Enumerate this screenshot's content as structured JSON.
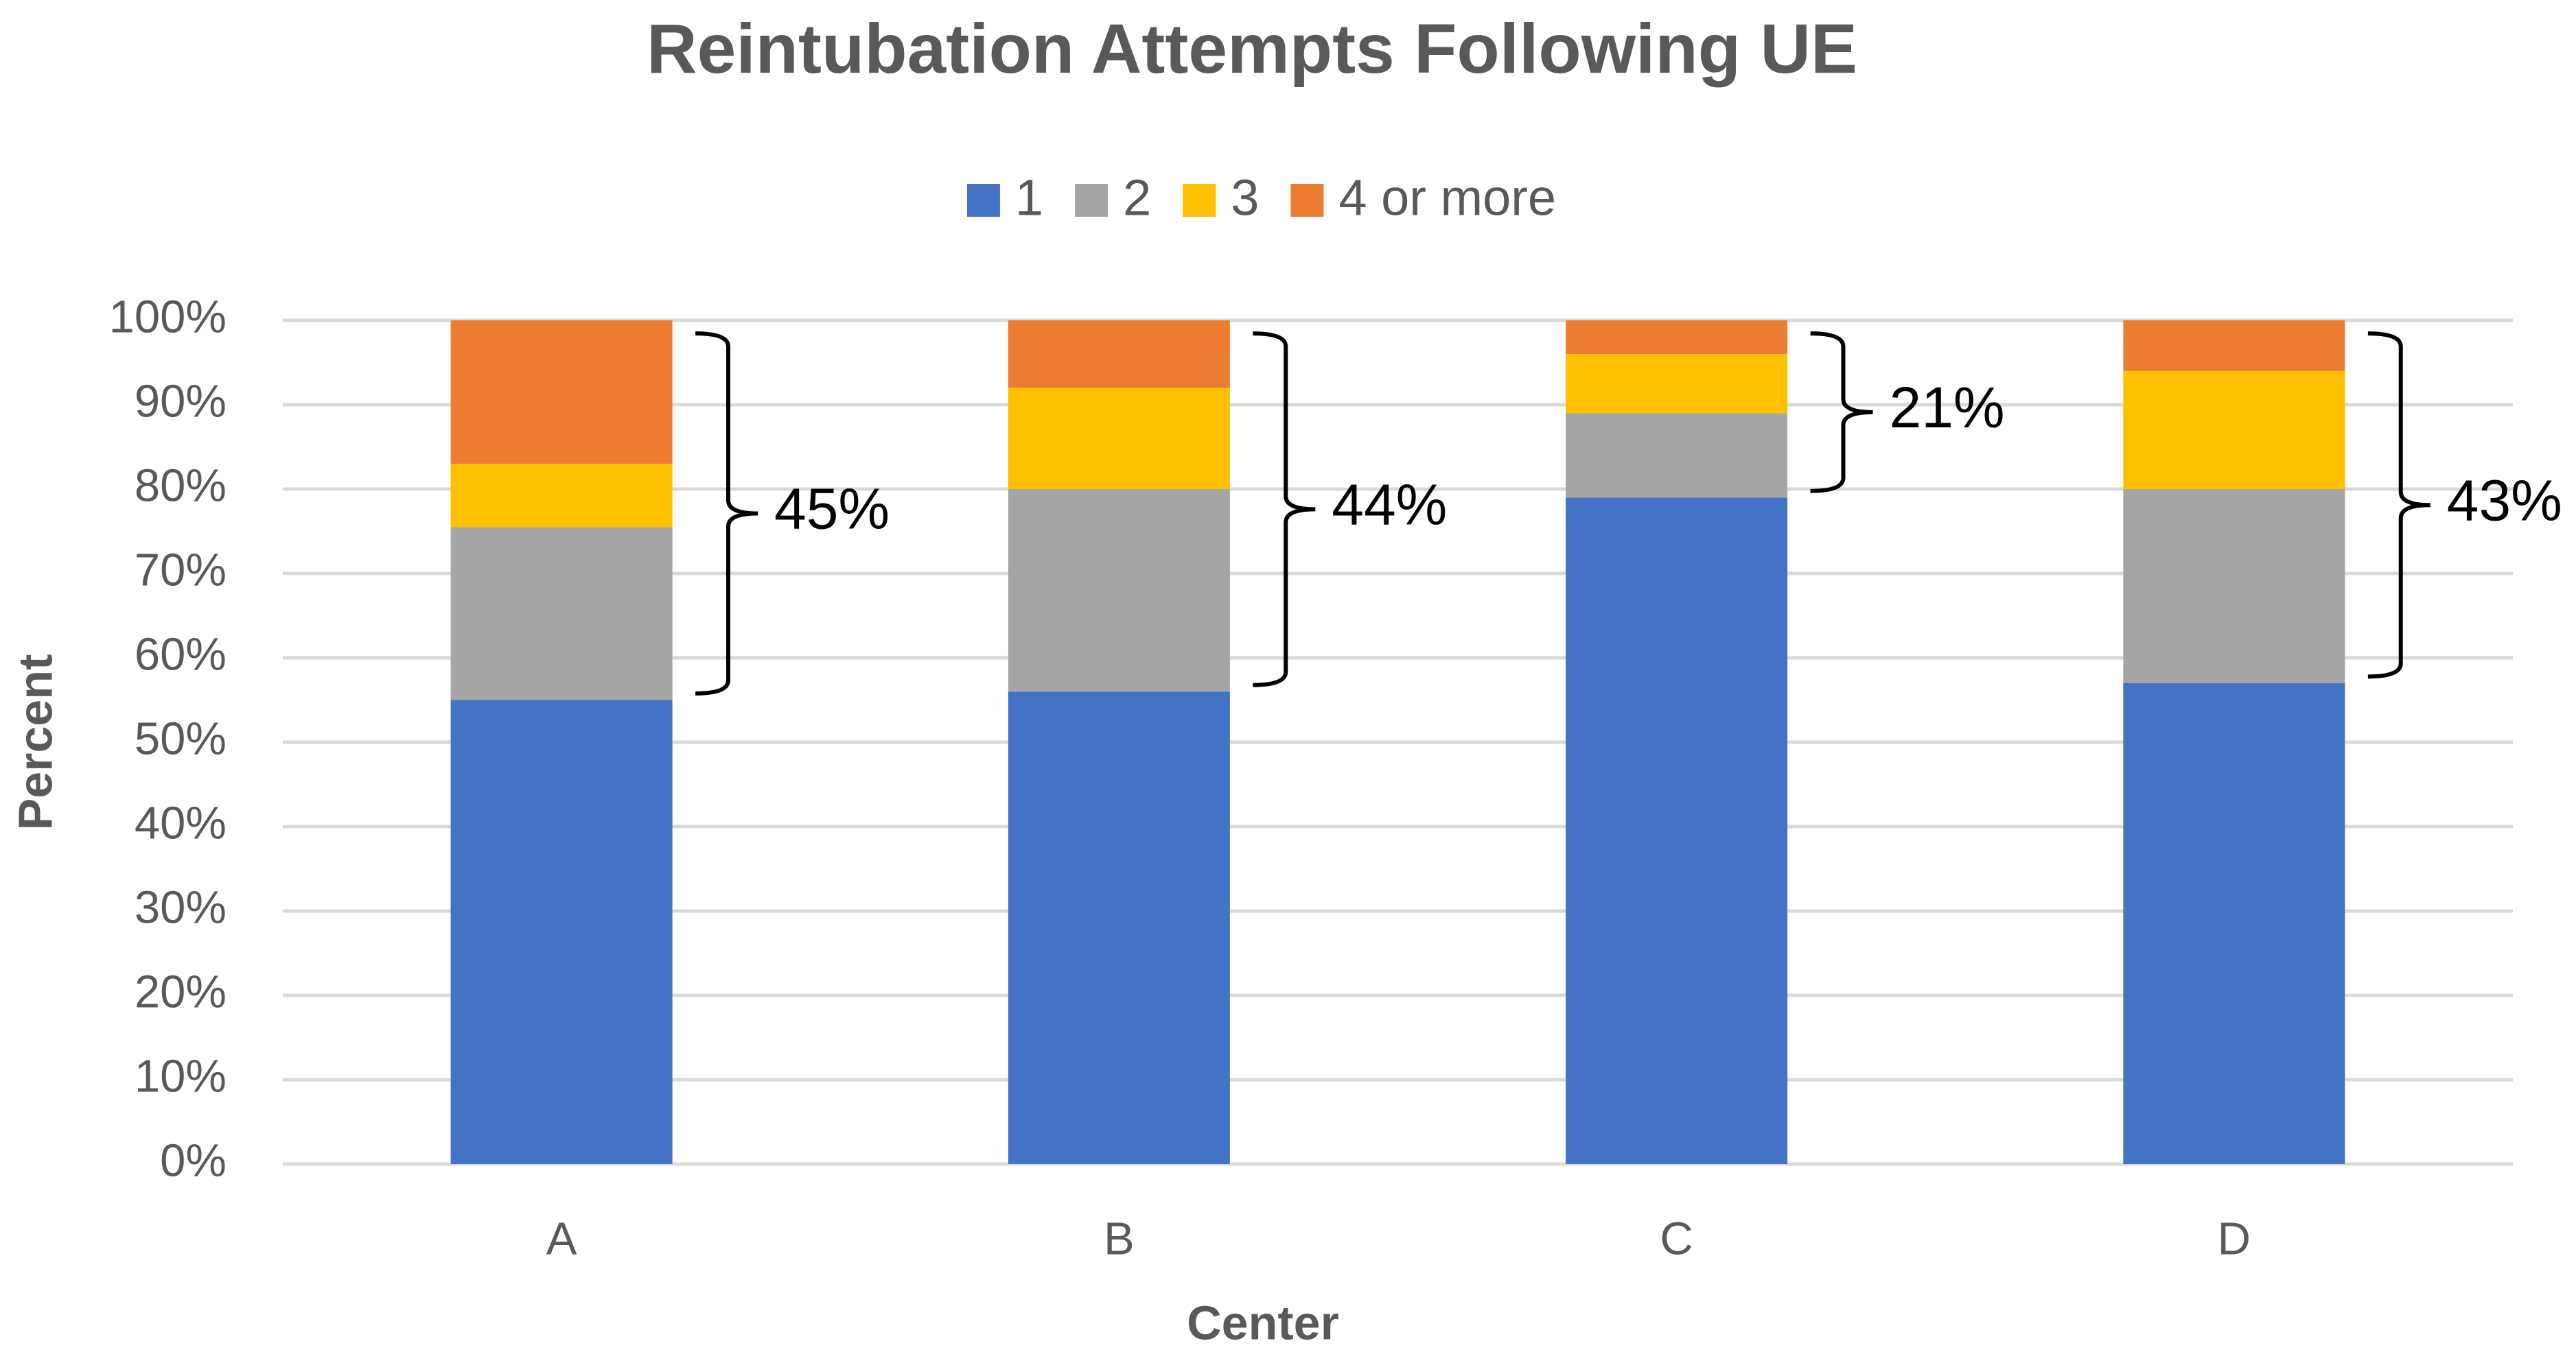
{
  "chart_data": {
    "type": "stacked_bar",
    "title": "Reintubation Attempts Following UE",
    "x_label": "Center",
    "y_label": "Percent",
    "categories": [
      "A",
      "B",
      "C",
      "D"
    ],
    "series": [
      {
        "name": "1",
        "color": "#4472c4",
        "values": [
          55,
          56,
          79,
          57
        ]
      },
      {
        "name": "2",
        "color": "#a5a5a5",
        "values": [
          20.5,
          24,
          10,
          23
        ]
      },
      {
        "name": "3",
        "color": "#ffc000",
        "values": [
          7.5,
          12,
          7,
          14
        ]
      },
      {
        "name": "4 or more",
        "color": "#ed7d31",
        "values": [
          17,
          8,
          4,
          6
        ]
      }
    ],
    "annotations": [
      "45%",
      "44%",
      "21%",
      "43%"
    ],
    "ylim": [
      0,
      100
    ],
    "yticks": [
      {
        "value": 0,
        "label": "0%"
      },
      {
        "value": 10,
        "label": "10%"
      },
      {
        "value": 20,
        "label": "20%"
      },
      {
        "value": 30,
        "label": "30%"
      },
      {
        "value": 40,
        "label": "40%"
      },
      {
        "value": 50,
        "label": "50%"
      },
      {
        "value": 60,
        "label": "60%"
      },
      {
        "value": 70,
        "label": "70%"
      },
      {
        "value": 80,
        "label": "80%"
      },
      {
        "value": 90,
        "label": "90%"
      },
      {
        "value": 100,
        "label": "100%"
      }
    ],
    "grid": true,
    "legend": "top"
  }
}
